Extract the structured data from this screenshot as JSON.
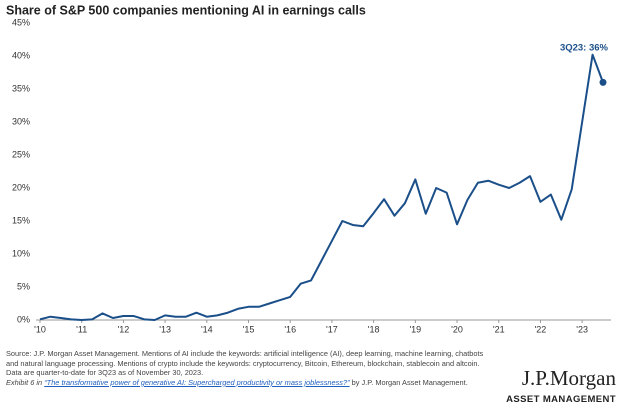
{
  "chart_data": {
    "type": "line",
    "title": "Share of S&P 500 companies mentioning AI in earnings calls",
    "categories": [
      "'10",
      null,
      null,
      null,
      "'11",
      null,
      null,
      null,
      "'12",
      null,
      null,
      null,
      "'13",
      null,
      null,
      null,
      "'14",
      null,
      null,
      null,
      "'15",
      null,
      null,
      null,
      "'16",
      null,
      null,
      null,
      "'17",
      null,
      null,
      null,
      "'18",
      null,
      null,
      null,
      "'19",
      null,
      null,
      null,
      "'20",
      null,
      null,
      null,
      "'21",
      null,
      null,
      null,
      "'22",
      null,
      null,
      null,
      "'23",
      null,
      null
    ],
    "series": [
      {
        "name": "Share of S&P 500 companies mentioning AI",
        "color": "#1b4f8a",
        "values": [
          0.1,
          0.5,
          0.3,
          0.1,
          0.0,
          0.1,
          1.0,
          0.3,
          0.6,
          0.6,
          0.1,
          0.0,
          0.7,
          0.5,
          0.5,
          1.1,
          0.5,
          0.7,
          1.1,
          1.7,
          2.0,
          2.0,
          2.5,
          3.0,
          3.5,
          5.5,
          6.0,
          9.0,
          12.0,
          15.0,
          14.4,
          14.2,
          16.2,
          18.3,
          15.8,
          17.7,
          21.3,
          16.1,
          20.0,
          19.3,
          14.5,
          18.2,
          20.8,
          21.1,
          20.5,
          20.0,
          20.8,
          21.8,
          17.9,
          19.0,
          15.2,
          19.8,
          30.0,
          40.2,
          36.0
        ]
      }
    ],
    "annotation": "3Q23: 36%",
    "ylim": [
      0,
      45
    ],
    "yticks": [
      {
        "value": 0,
        "label": "0%"
      },
      {
        "value": 5,
        "label": "5%"
      },
      {
        "value": 10,
        "label": "10%"
      },
      {
        "value": 15,
        "label": "15%"
      },
      {
        "value": 20,
        "label": "20%"
      },
      {
        "value": 25,
        "label": "25%"
      },
      {
        "value": 30,
        "label": "30%"
      },
      {
        "value": 35,
        "label": "35%"
      },
      {
        "value": 40,
        "label": "40%"
      },
      {
        "value": 45,
        "label": "45%"
      }
    ],
    "grid": false
  },
  "footnote": {
    "lines": [
      "Source: J.P. Morgan Asset Management. Mentions of AI include the keywords: artificial intelligence (AI), deep learning, machine learning, chatbots",
      "and natural language processing. Mentions of crypto include the keywords: cryptocurrency, Bitcoin, Ethereum, blockchain, stablecoin and altcoin.",
      "Data are quarter-to-date for 3Q23 as of November 30, 2023."
    ],
    "exhibit": "Exhibit 6 in ",
    "link": "“The transformative power of generative AI: Supercharged productivity or mass joblessness?”",
    "by": " by J.P. Morgan Asset Management."
  },
  "logo": {
    "name": "J.P.Morgan",
    "tagline": "ASSET MANAGEMENT"
  }
}
